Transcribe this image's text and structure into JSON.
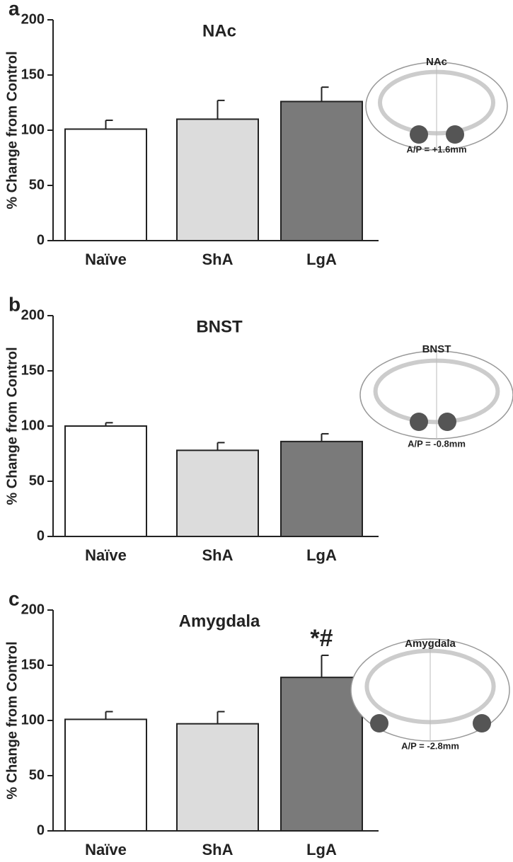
{
  "chart_data": [
    {
      "type": "bar",
      "panel": "a",
      "title": "NAc",
      "ylabel": "% Change from Control",
      "categories": [
        "Naïve",
        "ShA",
        "LgA"
      ],
      "series": [
        {
          "values": [
            101,
            110,
            126
          ],
          "errors": [
            8,
            17,
            13
          ],
          "colors": [
            "#ffffff",
            "#dcdcdc",
            "#7a7a7a"
          ]
        }
      ],
      "ylim": [
        0,
        200
      ],
      "yticks": [
        0,
        50,
        100,
        150,
        200
      ],
      "inset_title": "NAc",
      "inset_label": "A/P = +1.6mm"
    },
    {
      "type": "bar",
      "panel": "b",
      "title": "BNST",
      "ylabel": "% Change from Control",
      "categories": [
        "Naïve",
        "ShA",
        "LgA"
      ],
      "series": [
        {
          "values": [
            100,
            78,
            86
          ],
          "errors": [
            3,
            7,
            7
          ],
          "colors": [
            "#ffffff",
            "#dcdcdc",
            "#7a7a7a"
          ]
        }
      ],
      "ylim": [
        0,
        200
      ],
      "yticks": [
        0,
        50,
        100,
        150,
        200
      ],
      "inset_title": "BNST",
      "inset_label": "A/P = -0.8mm"
    },
    {
      "type": "bar",
      "panel": "c",
      "title": "Amygdala",
      "ylabel": "% Change from Control",
      "categories": [
        "Naïve",
        "ShA",
        "LgA"
      ],
      "series": [
        {
          "values": [
            101,
            97,
            139
          ],
          "errors": [
            7,
            11,
            20
          ],
          "colors": [
            "#ffffff",
            "#dcdcdc",
            "#7a7a7a"
          ]
        }
      ],
      "annotations": [
        {
          "category": 2,
          "text": "*#"
        }
      ],
      "ylim": [
        0,
        200
      ],
      "yticks": [
        0,
        50,
        100,
        150,
        200
      ],
      "inset_title": "Amygdala",
      "inset_label": "A/P = -2.8mm"
    }
  ]
}
